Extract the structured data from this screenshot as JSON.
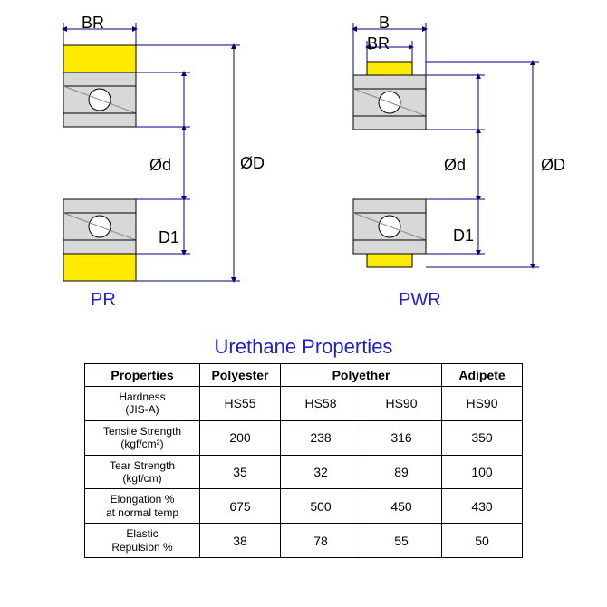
{
  "diagram_left": {
    "name": "PR",
    "labels": {
      "BR": "BR",
      "D": "ØD",
      "d": "Ød",
      "D1": "D1"
    },
    "colors": {
      "tyre": "#ffeb00",
      "steel": "#d3d3d3",
      "ball": "#ffffff",
      "outline": "#000000",
      "dim_line": "#000080"
    }
  },
  "diagram_right": {
    "name": "PWR",
    "labels": {
      "B": "B",
      "BR": "BR",
      "D": "ØD",
      "d": "Ød",
      "D1": "D1"
    },
    "colors": {
      "tyre": "#ffeb00",
      "steel": "#d3d3d3",
      "ball": "#ffffff",
      "outline": "#000000",
      "dim_line": "#000080"
    }
  },
  "table": {
    "title": "Urethane Properties",
    "header": [
      "Properties",
      "Polyester",
      "Polyether",
      "Adipete"
    ],
    "polyether_span": 2,
    "rows": [
      {
        "prop": "Hardness\n(JIS-A)",
        "vals": [
          "HS55",
          "HS58",
          "HS90",
          "HS90"
        ]
      },
      {
        "prop": "Tensile Strength\n(kgf/cm²)",
        "vals": [
          "200",
          "238",
          "316",
          "350"
        ]
      },
      {
        "prop": "Tear Strength\n(kgf/cm)",
        "vals": [
          "35",
          "32",
          "89",
          "100"
        ]
      },
      {
        "prop": "Elongation %\nat normal temp",
        "vals": [
          "675",
          "500",
          "450",
          "430"
        ]
      },
      {
        "prop": "Elastic\nRepulsion %",
        "vals": [
          "38",
          "78",
          "55",
          "50"
        ]
      }
    ],
    "col_widths": {
      "prop": 110,
      "val": 72
    }
  },
  "style": {
    "label_color": "#000000",
    "name_color": "#2020cc",
    "title_color": "#2020cc"
  }
}
